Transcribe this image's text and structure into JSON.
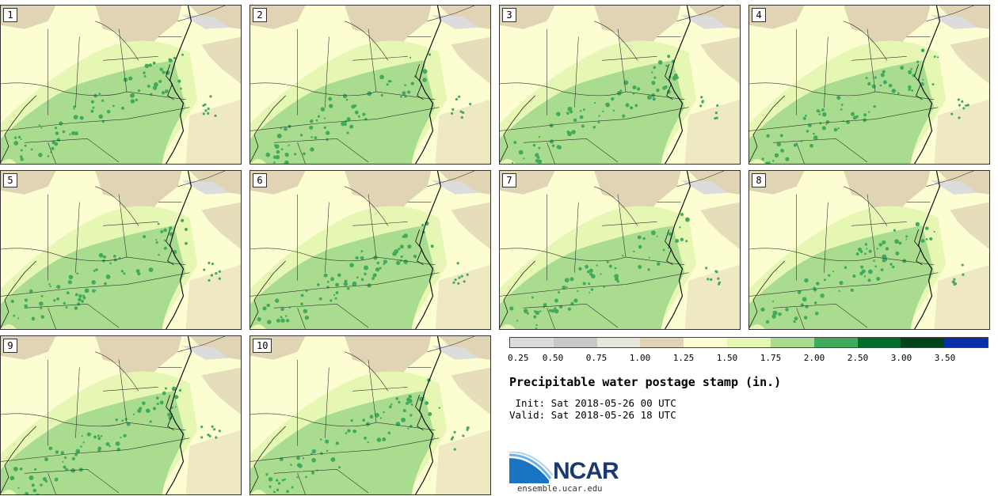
{
  "panels": [
    {
      "label": "1"
    },
    {
      "label": "2"
    },
    {
      "label": "3"
    },
    {
      "label": "4"
    },
    {
      "label": "5"
    },
    {
      "label": "6"
    },
    {
      "label": "7"
    },
    {
      "label": "8"
    },
    {
      "label": "9"
    },
    {
      "label": "10"
    }
  ],
  "legend": {
    "title": "Precipitable water postage stamp (in.)",
    "init": " Init: Sat 2018-05-26 00 UTC",
    "valid": "Valid: Sat 2018-05-26 18 UTC",
    "ticks": [
      "0.25",
      "0.50",
      "0.75",
      "1.00",
      "1.25",
      "1.50",
      "1.75",
      "2.00",
      "2.50",
      "3.00",
      "3.50"
    ],
    "colors": [
      "#dcdcdc",
      "#c8c8c8",
      "#e8e6da",
      "#e0d4b4",
      "#fdfdd2",
      "#e6f7b4",
      "#a9dc8e",
      "#41ab5d",
      "#006d2c",
      "#00441b",
      "#0a2ea8"
    ]
  },
  "logo": {
    "name": "NCAR",
    "url": "ensemble.ucar.edu"
  }
}
